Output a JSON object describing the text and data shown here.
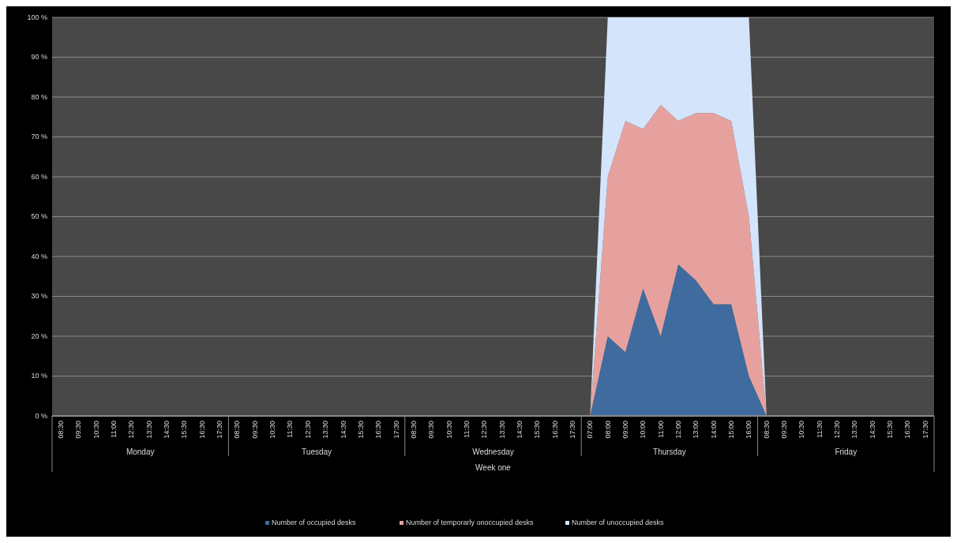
{
  "chart_data": {
    "type": "area",
    "stacked": true,
    "categories": [
      "08:30",
      "09:30",
      "10:30",
      "11:00",
      "12:30",
      "13:30",
      "14:30",
      "15:30",
      "16:30",
      "17:30",
      "08:30",
      "09:30",
      "10:30",
      "11:30",
      "12:30",
      "13:30",
      "14:30",
      "15:30",
      "16:30",
      "17:30",
      "08:30",
      "09:30",
      "10:30",
      "11:30",
      "12:30",
      "13:30",
      "14:30",
      "15:30",
      "16:30",
      "17:30",
      "07:00",
      "08:00",
      "09:00",
      "10:00",
      "11:00",
      "12:00",
      "13:00",
      "14:00",
      "15:00",
      "16:00",
      "08:30",
      "09:30",
      "10:30",
      "11:30",
      "12:30",
      "13:30",
      "14:30",
      "15:30",
      "16:30",
      "17:30"
    ],
    "series": [
      {
        "name": "Number of occupied desks",
        "color": "#3f6b9e",
        "values": [
          0,
          0,
          0,
          0,
          0,
          0,
          0,
          0,
          0,
          0,
          0,
          0,
          0,
          0,
          0,
          0,
          0,
          0,
          0,
          0,
          0,
          0,
          0,
          0,
          0,
          0,
          0,
          0,
          0,
          0,
          0,
          20,
          16,
          32,
          20,
          38,
          34,
          28,
          28,
          10,
          0,
          0,
          0,
          0,
          0,
          0,
          0,
          0,
          0,
          0
        ]
      },
      {
        "name": "Number of temporarly onoccupied desks",
        "color": "#e6a19f",
        "values": [
          0,
          0,
          0,
          0,
          0,
          0,
          0,
          0,
          0,
          0,
          0,
          0,
          0,
          0,
          0,
          0,
          0,
          0,
          0,
          0,
          0,
          0,
          0,
          0,
          0,
          0,
          0,
          0,
          0,
          0,
          0,
          40,
          58,
          40,
          58,
          36,
          42,
          48,
          46,
          40,
          0,
          0,
          0,
          0,
          0,
          0,
          0,
          0,
          0,
          0
        ]
      },
      {
        "name": "Number of unoccupied desks",
        "color": "#d4e4fb",
        "values": [
          0,
          0,
          0,
          0,
          0,
          0,
          0,
          0,
          0,
          0,
          0,
          0,
          0,
          0,
          0,
          0,
          0,
          0,
          0,
          0,
          0,
          0,
          0,
          0,
          0,
          0,
          0,
          0,
          0,
          0,
          0,
          40,
          26,
          28,
          22,
          26,
          24,
          24,
          26,
          50,
          0,
          0,
          0,
          0,
          0,
          0,
          0,
          0,
          0,
          0
        ]
      }
    ],
    "ylim": [
      0,
      100
    ],
    "yticks": [
      {
        "value": 0,
        "label": "0 %"
      },
      {
        "value": 10,
        "label": "10 %"
      },
      {
        "value": 20,
        "label": "20 %"
      },
      {
        "value": 30,
        "label": "30 %"
      },
      {
        "value": 40,
        "label": "40 %"
      },
      {
        "value": 50,
        "label": "50 %"
      },
      {
        "value": 60,
        "label": "60 %"
      },
      {
        "value": 70,
        "label": "70 %"
      },
      {
        "value": 80,
        "label": "80 %"
      },
      {
        "value": 90,
        "label": "90 %"
      },
      {
        "value": 100,
        "label": "100 %"
      }
    ],
    "grid": "y",
    "legend": "bottom",
    "annotations": [
      "Monday",
      "Tuesday",
      "Wednesday",
      "Thursday",
      "Friday",
      "Week one"
    ]
  }
}
